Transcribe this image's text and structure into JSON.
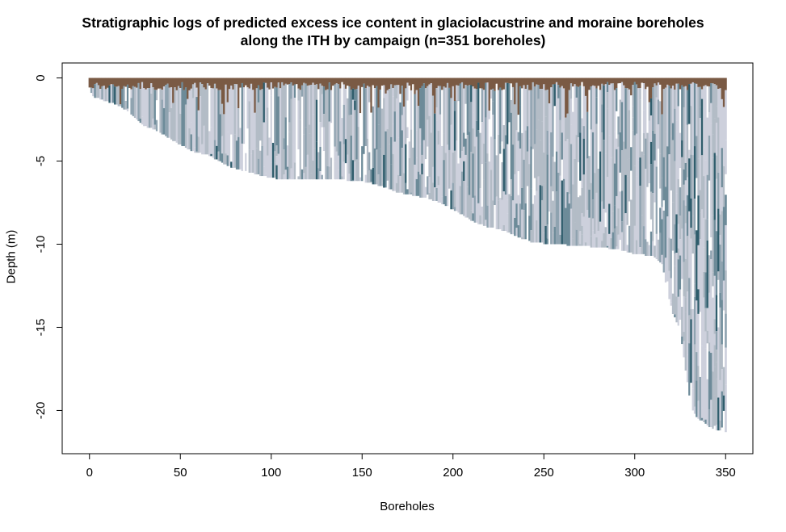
{
  "chart_data": {
    "type": "bar",
    "title": "Stratigraphic logs of predicted excess ice content in glaciolacustrine and moraine boreholes along the ITH by campaign (n=351 boreholes)",
    "title_lines": [
      "Stratigraphic logs of predicted excess ice content in glaciolacustrine and moraine boreholes",
      "along the ITH by campaign (n=351 boreholes)"
    ],
    "xlabel": "Boreholes",
    "ylabel": "Depth (m)",
    "xlim": [
      -15,
      365
    ],
    "ylim": [
      -22.6,
      0.9
    ],
    "x_ticks": [
      0,
      50,
      100,
      150,
      200,
      250,
      300,
      350
    ],
    "y_ticks": [
      0,
      -5,
      -10,
      -15,
      -20
    ],
    "n_boreholes": 351,
    "depth_profile": [
      [
        0,
        -0.8
      ],
      [
        2,
        -1.1
      ],
      [
        6,
        -1.3
      ],
      [
        12,
        -1.5
      ],
      [
        18,
        -1.8
      ],
      [
        22,
        -2.1
      ],
      [
        26,
        -2.5
      ],
      [
        30,
        -2.9
      ],
      [
        36,
        -3.1
      ],
      [
        42,
        -3.5
      ],
      [
        48,
        -3.9
      ],
      [
        53,
        -4.2
      ],
      [
        58,
        -4.5
      ],
      [
        64,
        -4.6
      ],
      [
        70,
        -4.9
      ],
      [
        76,
        -5.3
      ],
      [
        85,
        -5.6
      ],
      [
        95,
        -5.9
      ],
      [
        105,
        -6.1
      ],
      [
        130,
        -6.1
      ],
      [
        150,
        -6.2
      ],
      [
        160,
        -6.5
      ],
      [
        170,
        -6.9
      ],
      [
        180,
        -7.1
      ],
      [
        190,
        -7.4
      ],
      [
        198,
        -7.8
      ],
      [
        206,
        -8.3
      ],
      [
        212,
        -8.7
      ],
      [
        220,
        -9.0
      ],
      [
        228,
        -9.2
      ],
      [
        236,
        -9.6
      ],
      [
        244,
        -9.9
      ],
      [
        255,
        -10.0
      ],
      [
        270,
        -10.1
      ],
      [
        290,
        -10.3
      ],
      [
        300,
        -10.6
      ],
      [
        310,
        -10.7
      ],
      [
        315,
        -11.2
      ],
      [
        318,
        -12.8
      ],
      [
        321,
        -14.2
      ],
      [
        325,
        -15.2
      ],
      [
        328,
        -17.6
      ],
      [
        331,
        -19.8
      ],
      [
        334,
        -20.4
      ],
      [
        340,
        -20.9
      ],
      [
        345,
        -21.2
      ],
      [
        350,
        -21.3
      ]
    ],
    "colors": {
      "ice_light": "#cdd0dc",
      "ice_medium": "#b3bcc6",
      "ice_dark": "#8fa3b0",
      "ice_darker": "#6d8b99",
      "ice_darkest": "#2f5d6c",
      "active_layer": "#7a5a44",
      "no_data": "#ffffff"
    }
  }
}
